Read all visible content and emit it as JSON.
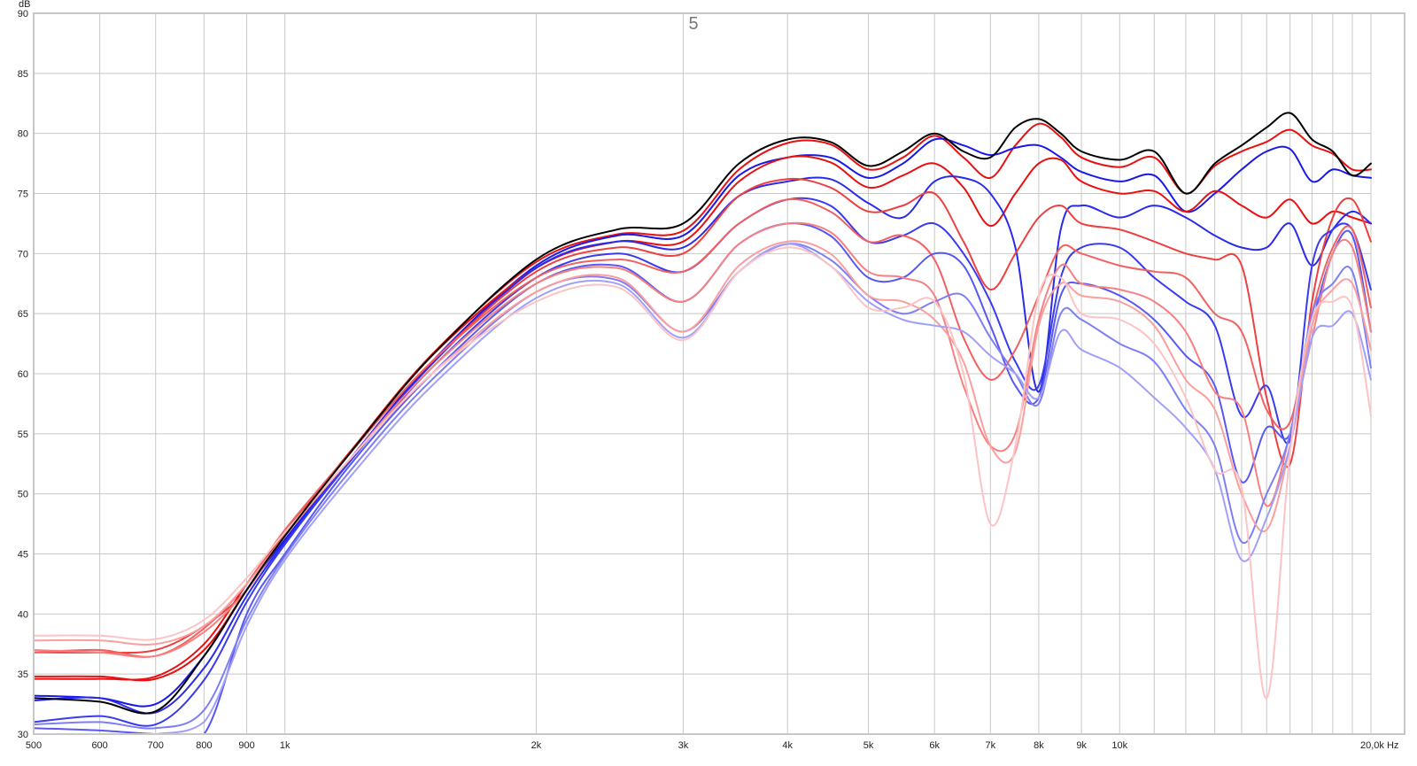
{
  "chart_data": {
    "type": "line",
    "title": "5",
    "ylabel": "dB",
    "xunit": "Hz",
    "xscale": "log",
    "xlim": [
      500,
      20000
    ],
    "ylim": [
      30,
      90
    ],
    "grid": true,
    "x_major_ticks": [
      {
        "value": 500,
        "label": "500"
      },
      {
        "value": 600,
        "label": "600"
      },
      {
        "value": 700,
        "label": "700"
      },
      {
        "value": 800,
        "label": "800"
      },
      {
        "value": 900,
        "label": "900"
      },
      {
        "value": 1000,
        "label": "1k"
      },
      {
        "value": 2000,
        "label": "2k"
      },
      {
        "value": 3000,
        "label": "3k"
      },
      {
        "value": 4000,
        "label": "4k"
      },
      {
        "value": 5000,
        "label": "5k"
      },
      {
        "value": 6000,
        "label": "6k"
      },
      {
        "value": 7000,
        "label": "7k"
      },
      {
        "value": 8000,
        "label": "8k"
      },
      {
        "value": 9000,
        "label": "9k"
      },
      {
        "value": 10000,
        "label": "10k"
      },
      {
        "value": 20000,
        "label": "20,0k Hz"
      }
    ],
    "x_minor_ticks": [
      11000,
      12000,
      13000,
      14000,
      15000,
      16000,
      17000,
      18000,
      19000
    ],
    "y_ticks": [
      {
        "value": 30,
        "label": "30"
      },
      {
        "value": 35,
        "label": "35"
      },
      {
        "value": 40,
        "label": "40"
      },
      {
        "value": 45,
        "label": "45"
      },
      {
        "value": 50,
        "label": "50"
      },
      {
        "value": 55,
        "label": "55"
      },
      {
        "value": 60,
        "label": "60"
      },
      {
        "value": 65,
        "label": "65"
      },
      {
        "value": 70,
        "label": "70"
      },
      {
        "value": 75,
        "label": "75"
      },
      {
        "value": 80,
        "label": "80"
      },
      {
        "value": 85,
        "label": "85"
      },
      {
        "value": 90,
        "label": "90"
      }
    ],
    "x": [
      500,
      600,
      700,
      800,
      900,
      1000,
      1200,
      1500,
      2000,
      2500,
      3000,
      3500,
      4000,
      4500,
      5000,
      5500,
      6000,
      6500,
      7000,
      7500,
      8000,
      8500,
      9000,
      10000,
      11000,
      12000,
      13000,
      14000,
      15000,
      16000,
      17000,
      18000,
      19000,
      20000
    ],
    "series": [
      {
        "color": "#000000",
        "values": [
          33.0,
          32.7,
          31.9,
          36.5,
          42.0,
          46.5,
          53.5,
          61.5,
          69.5,
          72.0,
          72.5,
          77.5,
          79.5,
          79.3,
          77.3,
          78.5,
          80.0,
          78.5,
          78.0,
          80.5,
          81.2,
          80.0,
          78.5,
          77.8,
          78.5,
          75.0,
          77.5,
          79.0,
          80.5,
          81.7,
          79.5,
          78.5,
          76.5,
          77.5
        ]
      },
      {
        "color": "#e81010",
        "values": [
          34.6,
          34.6,
          34.8,
          37.5,
          42.5,
          46.8,
          53.6,
          61.6,
          69.3,
          71.6,
          71.9,
          77.0,
          79.2,
          79.1,
          77.0,
          78.0,
          79.8,
          78.0,
          76.3,
          79.0,
          80.8,
          79.7,
          78.0,
          77.2,
          78.0,
          75.0,
          77.3,
          78.5,
          79.3,
          80.3,
          79.0,
          78.3,
          77.0,
          77.0
        ]
      },
      {
        "color": "#1818e8",
        "values": [
          33.2,
          33.0,
          32.5,
          36.5,
          42.0,
          46.2,
          53.0,
          61.0,
          69.0,
          71.5,
          71.5,
          76.5,
          78.0,
          78.0,
          76.3,
          77.5,
          79.5,
          79.0,
          78.2,
          78.8,
          79.0,
          78.0,
          76.8,
          76.0,
          76.5,
          73.5,
          75.0,
          77.0,
          78.5,
          78.7,
          76.0,
          77.0,
          76.5,
          76.3
        ]
      },
      {
        "color": "#e81010",
        "values": [
          34.8,
          34.8,
          34.6,
          37.0,
          42.0,
          46.5,
          53.5,
          61.5,
          68.8,
          71.0,
          71.0,
          76.0,
          78.0,
          77.6,
          75.5,
          76.5,
          77.5,
          75.5,
          72.3,
          75.0,
          77.5,
          77.8,
          76.0,
          75.0,
          75.2,
          73.5,
          75.2,
          74.0,
          73.0,
          74.5,
          72.5,
          73.5,
          73.0,
          72.5
        ]
      },
      {
        "color": "#2a2aec",
        "values": [
          32.8,
          33.0,
          31.8,
          35.5,
          41.5,
          46.0,
          53.0,
          60.8,
          68.8,
          71.0,
          70.5,
          74.8,
          76.0,
          76.2,
          74.2,
          73.0,
          76.0,
          76.3,
          75.0,
          70.5,
          58.5,
          72.0,
          74.0,
          73.0,
          74.0,
          73.0,
          71.5,
          70.5,
          70.5,
          72.5,
          69.0,
          72.0,
          73.5,
          72.5
        ]
      },
      {
        "color": "#ee4040",
        "values": [
          36.8,
          36.8,
          37.0,
          39.0,
          42.0,
          46.8,
          53.5,
          61.0,
          68.5,
          70.5,
          70.0,
          74.8,
          76.2,
          75.5,
          73.5,
          74.0,
          75.0,
          71.0,
          67.0,
          70.0,
          73.0,
          74.0,
          72.5,
          72.0,
          71.0,
          70.0,
          69.5,
          69.0,
          58.0,
          52.5,
          66.0,
          73.0,
          74.5,
          71.0
        ]
      },
      {
        "color": "#3a3aee",
        "values": [
          31.0,
          31.5,
          30.8,
          34.5,
          41.0,
          45.8,
          52.8,
          60.5,
          68.0,
          70.0,
          68.5,
          72.5,
          74.5,
          74.0,
          71.0,
          71.5,
          72.5,
          70.0,
          66.0,
          61.0,
          59.0,
          68.0,
          70.5,
          70.5,
          68.0,
          66.0,
          64.0,
          56.5,
          59.0,
          54.5,
          69.0,
          72.0,
          72.0,
          67.0
        ]
      },
      {
        "color": "#f46060",
        "values": [
          36.8,
          37.0,
          36.5,
          38.8,
          42.5,
          47.0,
          53.5,
          61.0,
          68.0,
          69.5,
          68.5,
          72.5,
          74.5,
          73.5,
          71.0,
          71.5,
          69.5,
          63.0,
          59.5,
          62.0,
          66.5,
          70.5,
          70.0,
          69.0,
          68.5,
          68.0,
          65.0,
          63.5,
          57.0,
          56.0,
          65.0,
          70.5,
          72.0,
          65.5
        ]
      },
      {
        "color": "#5858f2",
        "values": [
          30.5,
          30.3,
          29.5,
          29.8,
          40.0,
          45.0,
          52.5,
          60.0,
          67.5,
          69.0,
          66.0,
          70.8,
          72.5,
          71.5,
          68.0,
          68.0,
          70.0,
          69.0,
          64.0,
          59.0,
          58.0,
          66.5,
          67.5,
          66.5,
          64.5,
          61.5,
          59.0,
          51.0,
          55.5,
          55.0,
          64.0,
          70.0,
          71.5,
          63.5
        ]
      },
      {
        "color": "#f78080",
        "values": [
          37.0,
          36.8,
          36.5,
          38.5,
          42.0,
          46.5,
          53.0,
          60.5,
          67.5,
          68.8,
          66.0,
          70.8,
          72.5,
          71.8,
          68.5,
          68.0,
          66.5,
          59.0,
          54.0,
          55.0,
          64.5,
          69.0,
          67.5,
          67.0,
          66.0,
          63.5,
          58.5,
          57.0,
          49.0,
          55.0,
          63.0,
          70.0,
          70.5,
          63.5
        ]
      },
      {
        "color": "#7e7ef6",
        "values": [
          30.8,
          31.0,
          30.5,
          32.0,
          39.5,
          44.8,
          52.0,
          59.5,
          66.8,
          67.8,
          63.5,
          68.5,
          70.8,
          69.5,
          66.5,
          65.0,
          66.0,
          66.5,
          63.0,
          60.0,
          57.5,
          65.0,
          64.5,
          62.5,
          61.0,
          57.0,
          54.0,
          46.0,
          50.0,
          55.0,
          65.0,
          67.5,
          68.5,
          60.5
        ]
      },
      {
        "color": "#fb9e9e",
        "values": [
          37.8,
          37.8,
          37.5,
          39.0,
          42.5,
          46.5,
          53.0,
          60.0,
          66.8,
          68.0,
          63.5,
          69.0,
          71.0,
          70.0,
          66.5,
          66.0,
          64.5,
          61.0,
          54.0,
          53.5,
          64.0,
          67.5,
          66.5,
          66.0,
          64.0,
          59.5,
          57.0,
          50.0,
          47.0,
          54.0,
          64.0,
          67.0,
          67.5,
          62.0
        ]
      },
      {
        "color": "#a0a0fa",
        "values": [
          30.0,
          29.8,
          29.5,
          31.0,
          39.0,
          44.5,
          51.5,
          59.0,
          66.3,
          67.5,
          63.0,
          68.5,
          70.8,
          69.0,
          66.0,
          64.5,
          64.0,
          63.5,
          61.5,
          60.0,
          58.0,
          63.5,
          62.0,
          60.5,
          58.0,
          55.5,
          52.0,
          44.5,
          48.0,
          54.0,
          63.0,
          64.0,
          65.0,
          59.5
        ]
      },
      {
        "color": "#fcc4c4",
        "values": [
          38.2,
          38.2,
          37.9,
          39.5,
          43.0,
          46.8,
          53.0,
          60.0,
          66.0,
          67.2,
          62.8,
          68.5,
          70.5,
          69.0,
          65.5,
          65.5,
          66.0,
          60.0,
          47.5,
          54.0,
          66.5,
          68.0,
          65.0,
          64.5,
          62.5,
          58.0,
          52.0,
          50.5,
          33.0,
          53.5,
          64.5,
          66.0,
          65.5,
          56.5
        ]
      }
    ]
  }
}
